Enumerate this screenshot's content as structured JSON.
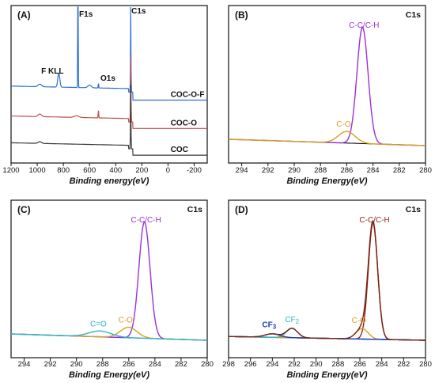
{
  "chart_data": [
    {
      "panel": "(A)",
      "type": "line",
      "xlabel": "Binding energy(eV)",
      "xlim": [
        1200,
        -300
      ],
      "xticks": [
        1200,
        1000,
        800,
        600,
        400,
        200,
        0,
        -200
      ],
      "peak_labels": [
        {
          "text": "F KLL",
          "x": 835
        },
        {
          "text": "F1s",
          "x": 688
        },
        {
          "text": "O1s",
          "x": 532
        },
        {
          "text": "C1s",
          "x": 285
        }
      ],
      "series": [
        {
          "name": "COC-O-F",
          "color": "#2d6fd0",
          "baseline": 0.45
        },
        {
          "name": "COC-O",
          "color": "#c0504d",
          "baseline": 0.26
        },
        {
          "name": "COC",
          "color": "#3a3a3a",
          "baseline": 0.09
        }
      ]
    },
    {
      "panel": "(B)",
      "corner_label": "C1s",
      "type": "line",
      "xlabel": "Binding Energy(eV)",
      "xlim": [
        295,
        280
      ],
      "xticks": [
        294,
        292,
        290,
        288,
        286,
        284,
        282,
        280
      ],
      "peaks": [
        {
          "label": "C-C/C-H",
          "center": 284.8,
          "height": 1.0,
          "fwhm": 1.0,
          "color": "#9b30d9"
        },
        {
          "label": "C-O",
          "center": 286.0,
          "height": 0.1,
          "fwhm": 1.5,
          "color": "#d4a020"
        }
      ],
      "envelope_color": "#111111"
    },
    {
      "panel": "(C)",
      "corner_label": "C1s",
      "type": "line",
      "xlabel": "Binding Energy(eV)",
      "xlim": [
        295,
        280
      ],
      "xticks": [
        294,
        292,
        290,
        288,
        286,
        284,
        282,
        280
      ],
      "peaks": [
        {
          "label": "C-C/C-H",
          "center": 284.8,
          "height": 1.0,
          "fwhm": 1.0,
          "color": "#9b30d9"
        },
        {
          "label": "C-O",
          "center": 286.0,
          "height": 0.09,
          "fwhm": 1.5,
          "color": "#d4a020"
        },
        {
          "label": "C=O",
          "center": 288.2,
          "height": 0.05,
          "fwhm": 2.0,
          "color": "#2fb3c9"
        }
      ],
      "envelope_color": "#111111"
    },
    {
      "panel": "(D)",
      "corner_label": "C1s",
      "type": "line",
      "xlabel": "Binding Energy(eV)",
      "xlim": [
        298,
        280
      ],
      "xticks": [
        298,
        296,
        294,
        292,
        290,
        288,
        286,
        284,
        282,
        280
      ],
      "peaks": [
        {
          "label": "C-C/C-H",
          "center": 284.8,
          "height": 1.0,
          "fwhm": 1.0,
          "color": "#8b2a1a"
        },
        {
          "label": "C-O",
          "center": 285.8,
          "height": 0.09,
          "fwhm": 1.3,
          "color": "#d4a020"
        },
        {
          "label": "CF2",
          "center": 292.2,
          "height": 0.08,
          "fwhm": 1.2,
          "color": "#2fb3c9"
        },
        {
          "label": "CF3",
          "center": 294.0,
          "height": 0.03,
          "fwhm": 1.6,
          "color": "#1a3fb5"
        }
      ],
      "envelope_color": "#7a1f12"
    }
  ]
}
